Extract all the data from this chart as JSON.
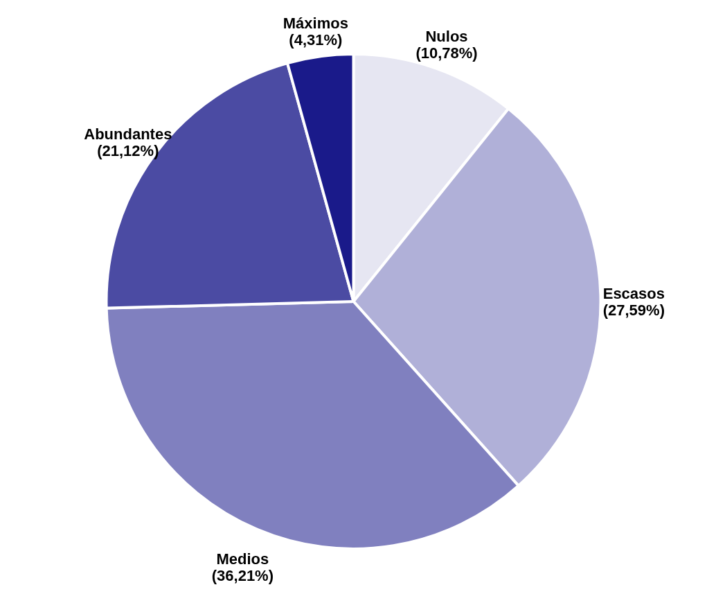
{
  "chart_data": {
    "type": "pie",
    "categories": [
      "Nulos",
      "Escasos",
      "Medios",
      "Abundantes",
      "Máximos"
    ],
    "values": [
      10.78,
      27.59,
      36.21,
      21.12,
      4.31
    ],
    "colors": [
      "#e6e6f2",
      "#b0b0d8",
      "#8080bf",
      "#4b4ba3",
      "#1a1a8a"
    ],
    "value_labels": [
      "(10,78%)",
      "(27,59%)",
      "(36,21%)",
      "(21,12%)",
      "(4,31%)"
    ]
  }
}
